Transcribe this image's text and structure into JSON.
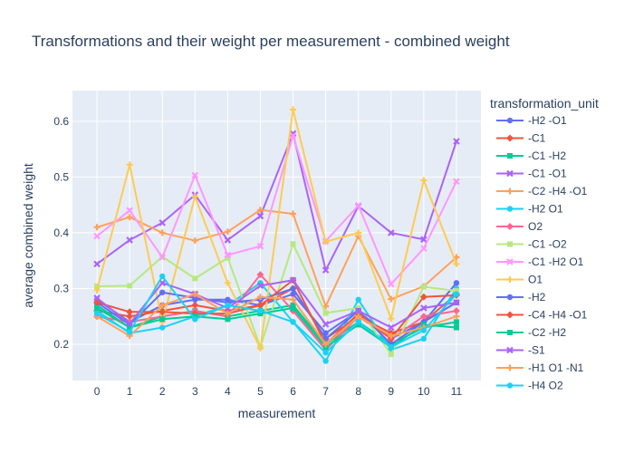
{
  "chart_data": {
    "type": "line",
    "title": "Transformations and their weight per measurement - combined weight",
    "xlabel": "measurement",
    "ylabel": "average combined weight",
    "x": [
      0,
      1,
      2,
      3,
      4,
      5,
      6,
      7,
      8,
      9,
      10,
      11
    ],
    "xlim": [
      -0.75,
      11.75
    ],
    "ylim": [
      0.135,
      0.655
    ],
    "yticks": [
      0.2,
      0.3,
      0.4,
      0.5,
      0.6
    ],
    "grid": true,
    "legend": {
      "title": "transformation_unit",
      "placement": "right"
    },
    "series": [
      {
        "name": "-H2 -O1",
        "color": "#636efa",
        "symbol": "circle",
        "values": [
          0.28,
          0.24,
          0.27,
          0.28,
          0.28,
          0.27,
          0.29,
          0.22,
          0.26,
          0.21,
          0.24,
          0.31
        ]
      },
      {
        "name": "-C1",
        "color": "#EF553B",
        "symbol": "diamond",
        "values": [
          0.26,
          0.25,
          0.26,
          0.27,
          0.26,
          0.27,
          0.3,
          0.21,
          0.25,
          0.22,
          0.24,
          0.29
        ]
      },
      {
        "name": "-C1 -H2",
        "color": "#00cc96",
        "symbol": "square",
        "values": [
          0.27,
          0.23,
          0.25,
          0.26,
          0.25,
          0.26,
          0.27,
          0.2,
          0.24,
          0.2,
          0.23,
          0.24
        ]
      },
      {
        "name": "-C1 -O1",
        "color": "#ab63fa",
        "symbol": "x",
        "values": [
          0.344,
          0.387,
          0.418,
          0.468,
          0.387,
          0.43,
          0.578,
          0.333,
          0.448,
          0.4,
          0.388,
          0.564
        ]
      },
      {
        "name": "-C2 -H4 -O1",
        "color": "#FFA15A",
        "symbol": "cross",
        "values": [
          0.41,
          0.428,
          0.4,
          0.386,
          0.402,
          0.441,
          0.434,
          0.268,
          0.394,
          0.281,
          0.304,
          0.356
        ]
      },
      {
        "name": "-H2 O1",
        "color": "#19d3f3",
        "symbol": "circle",
        "values": [
          0.26,
          0.22,
          0.23,
          0.25,
          0.27,
          0.31,
          0.24,
          0.17,
          0.28,
          0.19,
          0.21,
          0.3
        ]
      },
      {
        "name": "O2",
        "color": "#FF6692",
        "symbol": "diamond",
        "values": [
          0.25,
          0.24,
          0.25,
          0.26,
          0.25,
          0.325,
          0.26,
          0.19,
          0.25,
          0.21,
          0.25,
          0.26
        ]
      },
      {
        "name": "-C1 -O2",
        "color": "#B6E880",
        "symbol": "square",
        "values": [
          0.304,
          0.305,
          0.357,
          0.318,
          0.355,
          0.195,
          0.38,
          0.256,
          0.265,
          0.182,
          0.303,
          0.296
        ]
      },
      {
        "name": "-C1 -H2 O1",
        "color": "#FF97FF",
        "symbol": "x",
        "values": [
          0.394,
          0.44,
          0.356,
          0.503,
          0.36,
          0.376,
          0.574,
          0.385,
          0.449,
          0.308,
          0.372,
          0.492
        ]
      },
      {
        "name": "O1",
        "color": "#FECB52",
        "symbol": "cross",
        "values": [
          0.297,
          0.522,
          0.24,
          0.465,
          0.31,
          0.193,
          0.621,
          0.384,
          0.4,
          0.246,
          0.494,
          0.344
        ]
      },
      {
        "name": "-H2",
        "color": "#636efa",
        "symbol": "circle",
        "values": [
          0.275,
          0.235,
          0.293,
          0.283,
          0.275,
          0.28,
          0.3,
          0.21,
          0.26,
          0.2,
          0.24,
          0.275
        ]
      },
      {
        "name": "-C4 -H4 -O1",
        "color": "#EF553B",
        "symbol": "diamond",
        "values": [
          0.275,
          0.258,
          0.258,
          0.255,
          0.255,
          0.27,
          0.315,
          0.2,
          0.255,
          0.21,
          0.285,
          0.288
        ]
      },
      {
        "name": "-C2 -H2",
        "color": "#00cc96",
        "symbol": "square",
        "values": [
          0.265,
          0.23,
          0.245,
          0.25,
          0.245,
          0.255,
          0.265,
          0.195,
          0.235,
          0.195,
          0.235,
          0.23
        ]
      },
      {
        "name": "-S1",
        "color": "#ab63fa",
        "symbol": "x",
        "values": [
          0.283,
          0.237,
          0.31,
          0.29,
          0.265,
          0.305,
          0.315,
          0.236,
          0.26,
          0.23,
          0.265,
          0.275
        ]
      },
      {
        "name": "-H1 O1 -N1",
        "color": "#FFA15A",
        "symbol": "cross",
        "values": [
          0.25,
          0.215,
          0.27,
          0.29,
          0.255,
          0.285,
          0.28,
          0.2,
          0.25,
          0.215,
          0.23,
          0.25
        ]
      },
      {
        "name": "-H4 O2",
        "color": "#19d3f3",
        "symbol": "circle",
        "values": [
          0.255,
          0.222,
          0.322,
          0.245,
          0.27,
          0.26,
          0.24,
          0.185,
          0.24,
          0.195,
          0.225,
          0.29
        ]
      }
    ]
  }
}
